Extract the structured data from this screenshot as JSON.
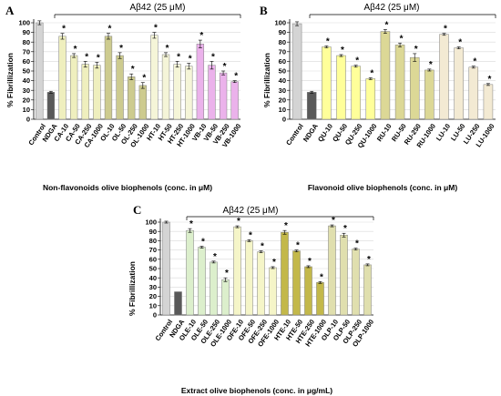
{
  "chart_data": [
    {
      "type": "bar",
      "panel_label": "A",
      "annotation": "Aβ42 (25 μM)",
      "ylabel": "% Fibrillization",
      "xlabel": "Non-flavonoids olive biophenols (conc. in    μM)",
      "ylim": [
        0,
        100
      ],
      "yticks": [
        0,
        10,
        20,
        30,
        40,
        50,
        60,
        70,
        80,
        90,
        100
      ],
      "categories": [
        "Control",
        "NDGA",
        "CA-10",
        "CA-50",
        "CA-250",
        "CA-1000",
        "OL-10",
        "OL-50",
        "OL-250",
        "OL-1000",
        "HT-10",
        "HT-50",
        "HT-250",
        "HT-1000",
        "VB-10",
        "VB-50",
        "VB-250",
        "VB-1000"
      ],
      "values": [
        100,
        28,
        86,
        66,
        57,
        56,
        86,
        66,
        44,
        35,
        87,
        67,
        57,
        55,
        78,
        56,
        48,
        39
      ],
      "errors": [
        2,
        1,
        3,
        2,
        3,
        3,
        3,
        3,
        3,
        3,
        3,
        2,
        3,
        3,
        4,
        4,
        2,
        1
      ],
      "significant": [
        false,
        false,
        true,
        true,
        true,
        true,
        true,
        true,
        true,
        true,
        true,
        true,
        true,
        true,
        true,
        true,
        true,
        true
      ],
      "colors": [
        "#d4d4d4",
        "#595959",
        "#efefbe",
        "#efefbe",
        "#efefbe",
        "#efefbe",
        "#cdcb8f",
        "#cdcb8f",
        "#cdcb8f",
        "#cdcb8f",
        "#f5f5d8",
        "#f5f5d8",
        "#f5f5d8",
        "#f5f5d8",
        "#ebb2eb",
        "#ebb2eb",
        "#ebb2eb",
        "#ebb2eb"
      ]
    },
    {
      "type": "bar",
      "panel_label": "B",
      "annotation": "Aβ42 (25 μM)",
      "ylabel": "% Fibrillization",
      "xlabel": "Flavonoid olive biophenols (conc. in    μM)",
      "ylim": [
        0,
        100
      ],
      "yticks": [
        0,
        10,
        20,
        30,
        40,
        50,
        60,
        70,
        80,
        90,
        100
      ],
      "categories": [
        "Control",
        "NDGA",
        "QU-10",
        "QU-50",
        "QU-250",
        "QU-1000",
        "RU-10",
        "RU-50",
        "RU-250",
        "RU-1000",
        "LU-10",
        "LU-50",
        "LU-250",
        "LU-1000"
      ],
      "values": [
        99,
        28,
        75,
        66,
        55,
        42,
        91,
        77,
        64,
        51,
        88,
        74,
        54,
        36
      ],
      "errors": [
        2,
        1,
        1,
        1,
        1,
        1,
        2,
        2,
        4,
        1,
        1,
        1,
        1,
        1
      ],
      "significant": [
        false,
        false,
        true,
        true,
        true,
        true,
        true,
        true,
        true,
        true,
        true,
        true,
        true,
        true
      ],
      "colors": [
        "#d4d4d4",
        "#595959",
        "#ffff9a",
        "#ffff9a",
        "#ffff9a",
        "#ffff9a",
        "#dcd896",
        "#dcd896",
        "#dcd896",
        "#dcd896",
        "#f3ead3",
        "#f3ead3",
        "#f3ead3",
        "#f3ead3"
      ]
    },
    {
      "type": "bar",
      "panel_label": "C",
      "annotation": "Aβ42 (25 μM)",
      "ylabel": "% Fibrillization",
      "xlabel": "Extract olive biophenols (conc. in       μg/mL)",
      "ylim": [
        0,
        100
      ],
      "yticks": [
        0,
        10,
        20,
        30,
        40,
        50,
        60,
        70,
        80,
        90,
        100
      ],
      "categories": [
        "Control",
        "NDGA",
        "OLE-10",
        "OLE-50",
        "OLE-250",
        "OLE-1000",
        "OFE-10",
        "OFE-50",
        "OFE-250",
        "OFE-1000",
        "HTE-10",
        "HTE-50",
        "HTE-250",
        "HTE-1000",
        "OLP-10",
        "OLP-50",
        "OLP-250",
        "OLP-1000"
      ],
      "values": [
        100,
        25,
        91,
        73,
        57,
        38,
        95,
        80,
        68,
        51,
        89,
        69,
        52,
        35,
        96,
        86,
        71,
        54
      ],
      "errors": [
        1,
        0,
        2,
        1,
        1,
        2,
        1,
        1,
        1,
        1,
        2,
        1,
        1,
        1,
        1,
        2,
        1,
        1
      ],
      "significant": [
        false,
        false,
        true,
        true,
        true,
        true,
        true,
        true,
        true,
        true,
        true,
        true,
        true,
        true,
        true,
        true,
        true,
        true
      ],
      "colors": [
        "#d4d4d4",
        "#595959",
        "#dcefcc",
        "#dcefcc",
        "#dcefcc",
        "#dcefcc",
        "#f5f5c8",
        "#f5f5c8",
        "#f5f5c8",
        "#f5f5c8",
        "#c3b84a",
        "#c3b84a",
        "#c3b84a",
        "#c3b84a",
        "#e0dfae",
        "#e0dfae",
        "#e0dfae",
        "#e0dfae"
      ]
    }
  ]
}
